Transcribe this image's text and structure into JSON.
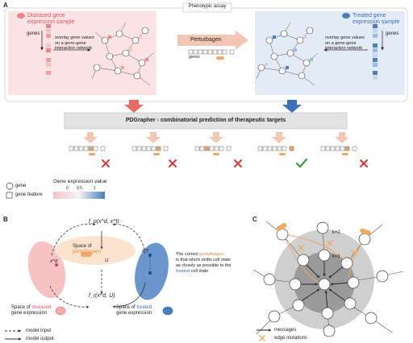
{
  "panel_a": {
    "letter": "A",
    "title": "Phenotypic assay",
    "diseased": {
      "title_line1": "Diseased gene",
      "title_line2": "expression sample",
      "genes_label": "genes",
      "overlay_line1": "overlay gene values",
      "overlay_line2": "on a gene-gene",
      "overlay_line3": "interaction network",
      "color": "#e8868a"
    },
    "treated": {
      "title_line1": "Treated gene",
      "title_line2": "expression sample",
      "genes_label": "genes",
      "overlay_line1": "overlay gene values",
      "overlay_line2": "on a gene-gene",
      "overlay_line3": "interaction network",
      "color": "#4a7fbf"
    },
    "perturbagen_label": "Perturbagen",
    "perturbagen_genes": "genes",
    "pdgrapher_label": "PDGrapher - combinatorial prediction of therapeutic targets",
    "legend": {
      "gene": "gene",
      "gene_feature": "gene feature",
      "expression_title": "Gene expression value",
      "tick_0": "0",
      "tick_05": "0.5",
      "tick_1": "1"
    },
    "outcomes": [
      "wrong",
      "wrong",
      "wrong",
      "correct",
      "wrong"
    ]
  },
  "panel_b": {
    "letter": "B",
    "top_formula": "f_p(x^d, x^t)",
    "bottom_formula": "f_r(x^d, U)",
    "xd": "x^d",
    "xt": "x^t",
    "u": "U",
    "space_perturbagens_line1": "Space of",
    "space_perturbagens_line2": "perturbagens",
    "correct_line1_pre": "The correct ",
    "correct_line1_hl": "perturbagen",
    "correct_line2": "is that which shifts cell state",
    "correct_line3": "as closely as possible to the",
    "correct_line4_hl": "treated",
    "correct_line4_post": " cell state",
    "space_diseased_line1_pre": "Space of ",
    "space_diseased_line1_hl": "diseased",
    "space_diseased_line2": "gene expression",
    "space_treated_line1_pre": "Space of ",
    "space_treated_line1_hl": "treated",
    "space_treated_line2": "gene expression",
    "legend_input": "model input",
    "legend_output": "model output"
  },
  "panel_c": {
    "letter": "C",
    "k2": "k=2",
    "k1": "k=1",
    "legend_messages": "messages",
    "legend_mutations": "edge mutations"
  }
}
